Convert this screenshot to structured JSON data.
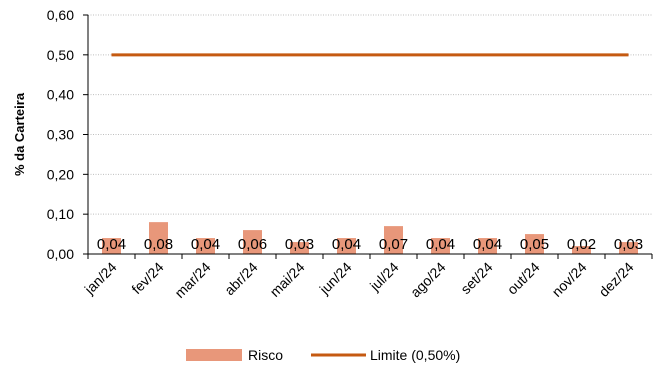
{
  "chart_data": {
    "type": "bar",
    "title": "",
    "xlabel": "",
    "ylabel": "% da Carteira",
    "ylim": [
      0,
      0.6
    ],
    "yticks": [
      "0,00",
      "0,10",
      "0,20",
      "0,30",
      "0,40",
      "0,50",
      "0,60"
    ],
    "ytick_values": [
      0,
      0.1,
      0.2,
      0.3,
      0.4,
      0.5,
      0.6
    ],
    "categories": [
      "jan/24",
      "fev/24",
      "mar/24",
      "abr/24",
      "mai/24",
      "jun/24",
      "jul/24",
      "ago/24",
      "set/24",
      "out/24",
      "nov/24",
      "dez/24"
    ],
    "series": [
      {
        "name": "Risco",
        "kind": "bar",
        "color": "#e8977a",
        "values": [
          0.04,
          0.08,
          0.04,
          0.06,
          0.03,
          0.04,
          0.07,
          0.04,
          0.04,
          0.05,
          0.02,
          0.03
        ],
        "labels": [
          "0,04",
          "0,08",
          "0,04",
          "0,06",
          "0,03",
          "0,04",
          "0,07",
          "0,04",
          "0,04",
          "0,05",
          "0,02",
          "0,03"
        ]
      },
      {
        "name": "Limite (0,50%)",
        "kind": "line",
        "color": "#c55a11",
        "values": [
          0.5,
          0.5,
          0.5,
          0.5,
          0.5,
          0.5,
          0.5,
          0.5,
          0.5,
          0.5,
          0.5,
          0.5
        ]
      }
    ],
    "grid": true,
    "legend_position": "bottom"
  }
}
